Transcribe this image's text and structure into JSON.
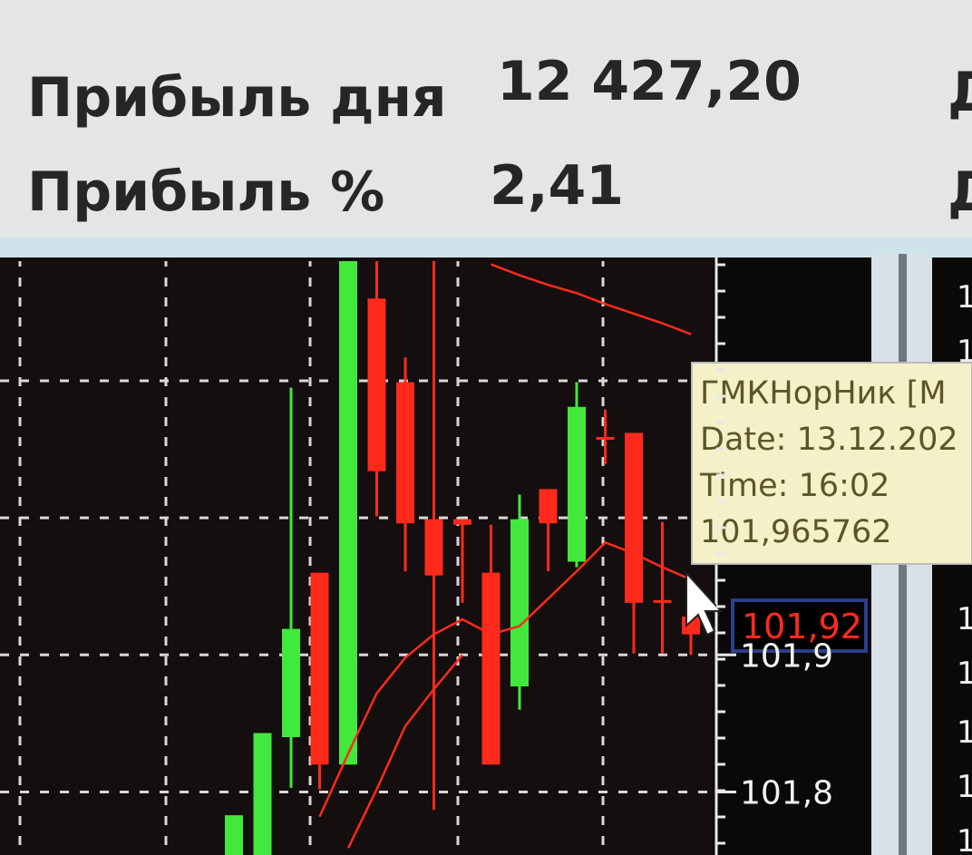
{
  "header": {
    "rows": [
      {
        "label": "Прибыль дня",
        "value": "12 427,20",
        "cut": "Д"
      },
      {
        "label": "Прибыль %",
        "value": "2,41",
        "cut": "Д"
      }
    ]
  },
  "chart_data": {
    "type": "candlestick",
    "categories": [
      null,
      null,
      null,
      null,
      null,
      null,
      null,
      null,
      null,
      null,
      null,
      null,
      null,
      null,
      null,
      null,
      null
    ],
    "open": [
      101.75,
      101.754,
      101.84,
      101.96,
      101.82,
      102.16,
      102.099,
      101.999,
      101.999,
      101.96,
      101.877,
      102.021,
      101.968,
      102.059,
      102.062,
      101.94,
      101.928
    ],
    "high": [
      101.783,
      101.843,
      102.095,
      101.96,
      102.19,
      102.19,
      102.117,
      102.19,
      101.999,
      101.995,
      102.017,
      102.021,
      102.099,
      102.079,
      102.062,
      101.997,
      101.93
    ],
    "low": [
      101.75,
      101.754,
      101.803,
      101.802,
      101.82,
      102.001,
      101.961,
      101.787,
      101.938,
      101.82,
      101.86,
      101.961,
      101.964,
      102.039,
      101.901,
      101.901,
      101.9
    ],
    "close": [
      101.783,
      101.843,
      101.919,
      101.82,
      102.19,
      102.034,
      101.996,
      101.958,
      101.995,
      101.82,
      101.999,
      101.996,
      102.081,
      102.057,
      101.938,
      101.938,
      101.915
    ],
    "up_color": "#43e83c",
    "down_color": "#ff2a1c",
    "series": [
      {
        "color": "#ff2a1c",
        "values": [
          null,
          null,
          null,
          101.782,
          101.828,
          101.872,
          101.898,
          101.915,
          101.926,
          101.915,
          101.921,
          101.941,
          101.961,
          101.982,
          101.974,
          101.964,
          101.955
        ]
      },
      {
        "color": "#ff2a1c",
        "values": [
          null,
          null,
          null,
          null,
          101.759,
          101.802,
          101.848,
          101.875,
          101.9,
          null,
          null,
          null,
          null,
          null,
          null,
          null,
          null
        ]
      },
      {
        "color": "#ff2a1c",
        "values": [
          null,
          null,
          null,
          null,
          null,
          null,
          null,
          null,
          null,
          102.185,
          102.177,
          102.17,
          102.164,
          102.156,
          102.149,
          102.142,
          102.134
        ]
      }
    ],
    "ylim": [
      101.754,
      102.186
    ],
    "yticks": [
      {
        "value": 101.9,
        "label": "101,9"
      },
      {
        "value": 101.8,
        "label": "101,8"
      }
    ],
    "gridlines": [
      102.1,
      102.0,
      101.9,
      101.8
    ],
    "price_label": {
      "value": 101.92,
      "label": "101,92"
    }
  },
  "tooltip": {
    "lines": [
      "ГМКНорНик [М",
      "Date: 13.12.202",
      "Time: 16:02",
      "101,965762"
    ]
  },
  "right_column": [
    "1",
    "1",
    "1",
    "1",
    "1",
    "1",
    "1"
  ]
}
